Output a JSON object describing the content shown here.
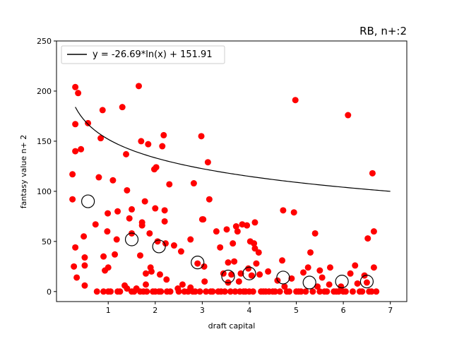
{
  "chart_data": {
    "type": "scatter",
    "title": "RB, n+:2",
    "xlabel": "draft capital",
    "ylabel": "fantasy value n+ 2",
    "xlim": [
      -0.1,
      7.35
    ],
    "ylim": [
      -10,
      250
    ],
    "xticks": [
      "1",
      "2",
      "3",
      "4",
      "5",
      "6",
      "7"
    ],
    "yticks": [
      "0",
      "50",
      "100",
      "150",
      "200",
      "250"
    ],
    "grid": false,
    "legend_position": "top-left",
    "legend_label": "y = -26.69*ln(x) + 151.91",
    "colors": {
      "points": "#ff0000",
      "fit": "#000000",
      "means": "#000000"
    },
    "fit": {
      "a": -26.69,
      "b": 151.91,
      "x_from": 0.3,
      "x_to": 7.0
    },
    "points": [
      [
        0.24,
        92
      ],
      [
        0.24,
        117
      ],
      [
        0.27,
        25
      ],
      [
        0.3,
        204
      ],
      [
        0.3,
        167
      ],
      [
        0.3,
        140
      ],
      [
        0.3,
        44
      ],
      [
        0.33,
        14
      ],
      [
        0.36,
        198
      ],
      [
        0.42,
        142
      ],
      [
        0.48,
        55
      ],
      [
        0.5,
        34
      ],
      [
        0.5,
        26
      ],
      [
        0.5,
        6
      ],
      [
        0.57,
        168
      ],
      [
        0.73,
        67
      ],
      [
        0.76,
        0
      ],
      [
        0.8,
        114
      ],
      [
        0.84,
        153
      ],
      [
        0.88,
        181
      ],
      [
        0.9,
        35
      ],
      [
        0.9,
        0
      ],
      [
        0.93,
        21
      ],
      [
        0.98,
        60
      ],
      [
        0.99,
        78
      ],
      [
        1.0,
        24
      ],
      [
        1.0,
        0
      ],
      [
        1.05,
        0
      ],
      [
        1.1,
        111
      ],
      [
        1.14,
        37
      ],
      [
        1.18,
        52
      ],
      [
        1.2,
        80
      ],
      [
        1.2,
        0
      ],
      [
        1.25,
        0
      ],
      [
        1.3,
        184
      ],
      [
        1.35,
        6
      ],
      [
        1.38,
        137
      ],
      [
        1.4,
        101
      ],
      [
        1.4,
        3
      ],
      [
        1.45,
        73
      ],
      [
        1.5,
        82
      ],
      [
        1.5,
        58
      ],
      [
        1.5,
        0
      ],
      [
        1.55,
        0
      ],
      [
        1.6,
        3
      ],
      [
        1.65,
        205
      ],
      [
        1.68,
        36
      ],
      [
        1.68,
        0
      ],
      [
        1.7,
        150
      ],
      [
        1.72,
        69
      ],
      [
        1.72,
        66
      ],
      [
        1.75,
        0
      ],
      [
        1.78,
        90
      ],
      [
        1.8,
        18
      ],
      [
        1.8,
        7
      ],
      [
        1.82,
        0
      ],
      [
        1.85,
        147
      ],
      [
        1.88,
        58
      ],
      [
        1.9,
        24
      ],
      [
        1.92,
        20
      ],
      [
        1.95,
        0
      ],
      [
        1.98,
        122
      ],
      [
        2.0,
        83
      ],
      [
        2.0,
        0
      ],
      [
        2.02,
        124
      ],
      [
        2.05,
        50
      ],
      [
        2.08,
        0
      ],
      [
        2.1,
        17
      ],
      [
        2.12,
        0
      ],
      [
        2.15,
        145
      ],
      [
        2.18,
        156
      ],
      [
        2.2,
        81
      ],
      [
        2.2,
        70
      ],
      [
        2.22,
        48
      ],
      [
        2.24,
        12
      ],
      [
        2.25,
        0
      ],
      [
        2.3,
        107
      ],
      [
        2.32,
        0
      ],
      [
        2.4,
        46
      ],
      [
        2.48,
        3
      ],
      [
        2.5,
        0
      ],
      [
        2.55,
        40
      ],
      [
        2.58,
        7
      ],
      [
        2.62,
        0
      ],
      [
        2.7,
        0
      ],
      [
        2.75,
        52
      ],
      [
        2.75,
        4
      ],
      [
        2.8,
        0
      ],
      [
        2.82,
        108
      ],
      [
        2.85,
        0
      ],
      [
        2.9,
        28
      ],
      [
        2.95,
        0
      ],
      [
        2.98,
        155
      ],
      [
        3.0,
        72
      ],
      [
        3.02,
        72
      ],
      [
        3.04,
        25
      ],
      [
        3.05,
        10
      ],
      [
        3.08,
        0
      ],
      [
        3.12,
        129
      ],
      [
        3.15,
        92
      ],
      [
        3.18,
        0
      ],
      [
        3.22,
        0
      ],
      [
        3.3,
        60
      ],
      [
        3.34,
        0
      ],
      [
        3.38,
        44
      ],
      [
        3.4,
        0
      ],
      [
        3.45,
        18
      ],
      [
        3.48,
        0
      ],
      [
        3.52,
        62
      ],
      [
        3.55,
        29
      ],
      [
        3.55,
        9
      ],
      [
        3.6,
        0
      ],
      [
        3.62,
        17
      ],
      [
        3.65,
        48
      ],
      [
        3.68,
        30
      ],
      [
        3.7,
        0
      ],
      [
        3.72,
        65
      ],
      [
        3.75,
        60
      ],
      [
        3.78,
        10
      ],
      [
        3.8,
        0
      ],
      [
        3.82,
        18
      ],
      [
        3.85,
        67
      ],
      [
        3.88,
        0
      ],
      [
        3.92,
        0
      ],
      [
        3.95,
        66
      ],
      [
        3.98,
        23
      ],
      [
        4.0,
        0
      ],
      [
        4.02,
        50
      ],
      [
        4.05,
        16
      ],
      [
        4.08,
        0
      ],
      [
        4.1,
        48
      ],
      [
        4.12,
        69
      ],
      [
        4.12,
        43
      ],
      [
        4.15,
        28
      ],
      [
        4.2,
        39
      ],
      [
        4.22,
        17
      ],
      [
        4.25,
        0
      ],
      [
        4.3,
        0
      ],
      [
        4.35,
        0
      ],
      [
        4.4,
        20
      ],
      [
        4.42,
        0
      ],
      [
        4.5,
        0
      ],
      [
        4.55,
        0
      ],
      [
        4.6,
        11
      ],
      [
        4.65,
        0
      ],
      [
        4.7,
        31
      ],
      [
        4.72,
        81
      ],
      [
        4.75,
        5
      ],
      [
        4.8,
        0
      ],
      [
        4.85,
        0
      ],
      [
        4.9,
        13
      ],
      [
        4.95,
        79
      ],
      [
        4.98,
        191
      ],
      [
        5.0,
        0
      ],
      [
        5.05,
        0
      ],
      [
        5.1,
        0
      ],
      [
        5.15,
        19
      ],
      [
        5.2,
        0
      ],
      [
        5.25,
        24
      ],
      [
        5.3,
        39
      ],
      [
        5.35,
        0
      ],
      [
        5.4,
        58
      ],
      [
        5.45,
        5
      ],
      [
        5.5,
        21
      ],
      [
        5.5,
        0
      ],
      [
        5.55,
        14
      ],
      [
        5.6,
        0
      ],
      [
        5.65,
        0
      ],
      [
        5.7,
        7
      ],
      [
        5.72,
        24
      ],
      [
        5.8,
        0
      ],
      [
        5.85,
        0
      ],
      [
        5.9,
        0
      ],
      [
        5.95,
        5
      ],
      [
        6.0,
        0
      ],
      [
        6.05,
        0
      ],
      [
        6.1,
        176
      ],
      [
        6.15,
        18
      ],
      [
        6.2,
        0
      ],
      [
        6.25,
        26
      ],
      [
        6.3,
        8
      ],
      [
        6.35,
        0
      ],
      [
        6.4,
        0
      ],
      [
        6.45,
        16
      ],
      [
        6.5,
        9
      ],
      [
        6.52,
        53
      ],
      [
        6.55,
        0
      ],
      [
        6.6,
        0
      ],
      [
        6.62,
        118
      ],
      [
        6.65,
        60
      ],
      [
        6.65,
        24
      ],
      [
        6.7,
        0
      ]
    ],
    "means": [
      [
        0.57,
        90
      ],
      [
        1.5,
        52
      ],
      [
        2.08,
        45
      ],
      [
        2.9,
        29
      ],
      [
        3.55,
        15
      ],
      [
        4.0,
        18
      ],
      [
        4.72,
        14
      ],
      [
        5.28,
        9
      ],
      [
        5.97,
        10
      ],
      [
        6.5,
        10
      ]
    ]
  }
}
